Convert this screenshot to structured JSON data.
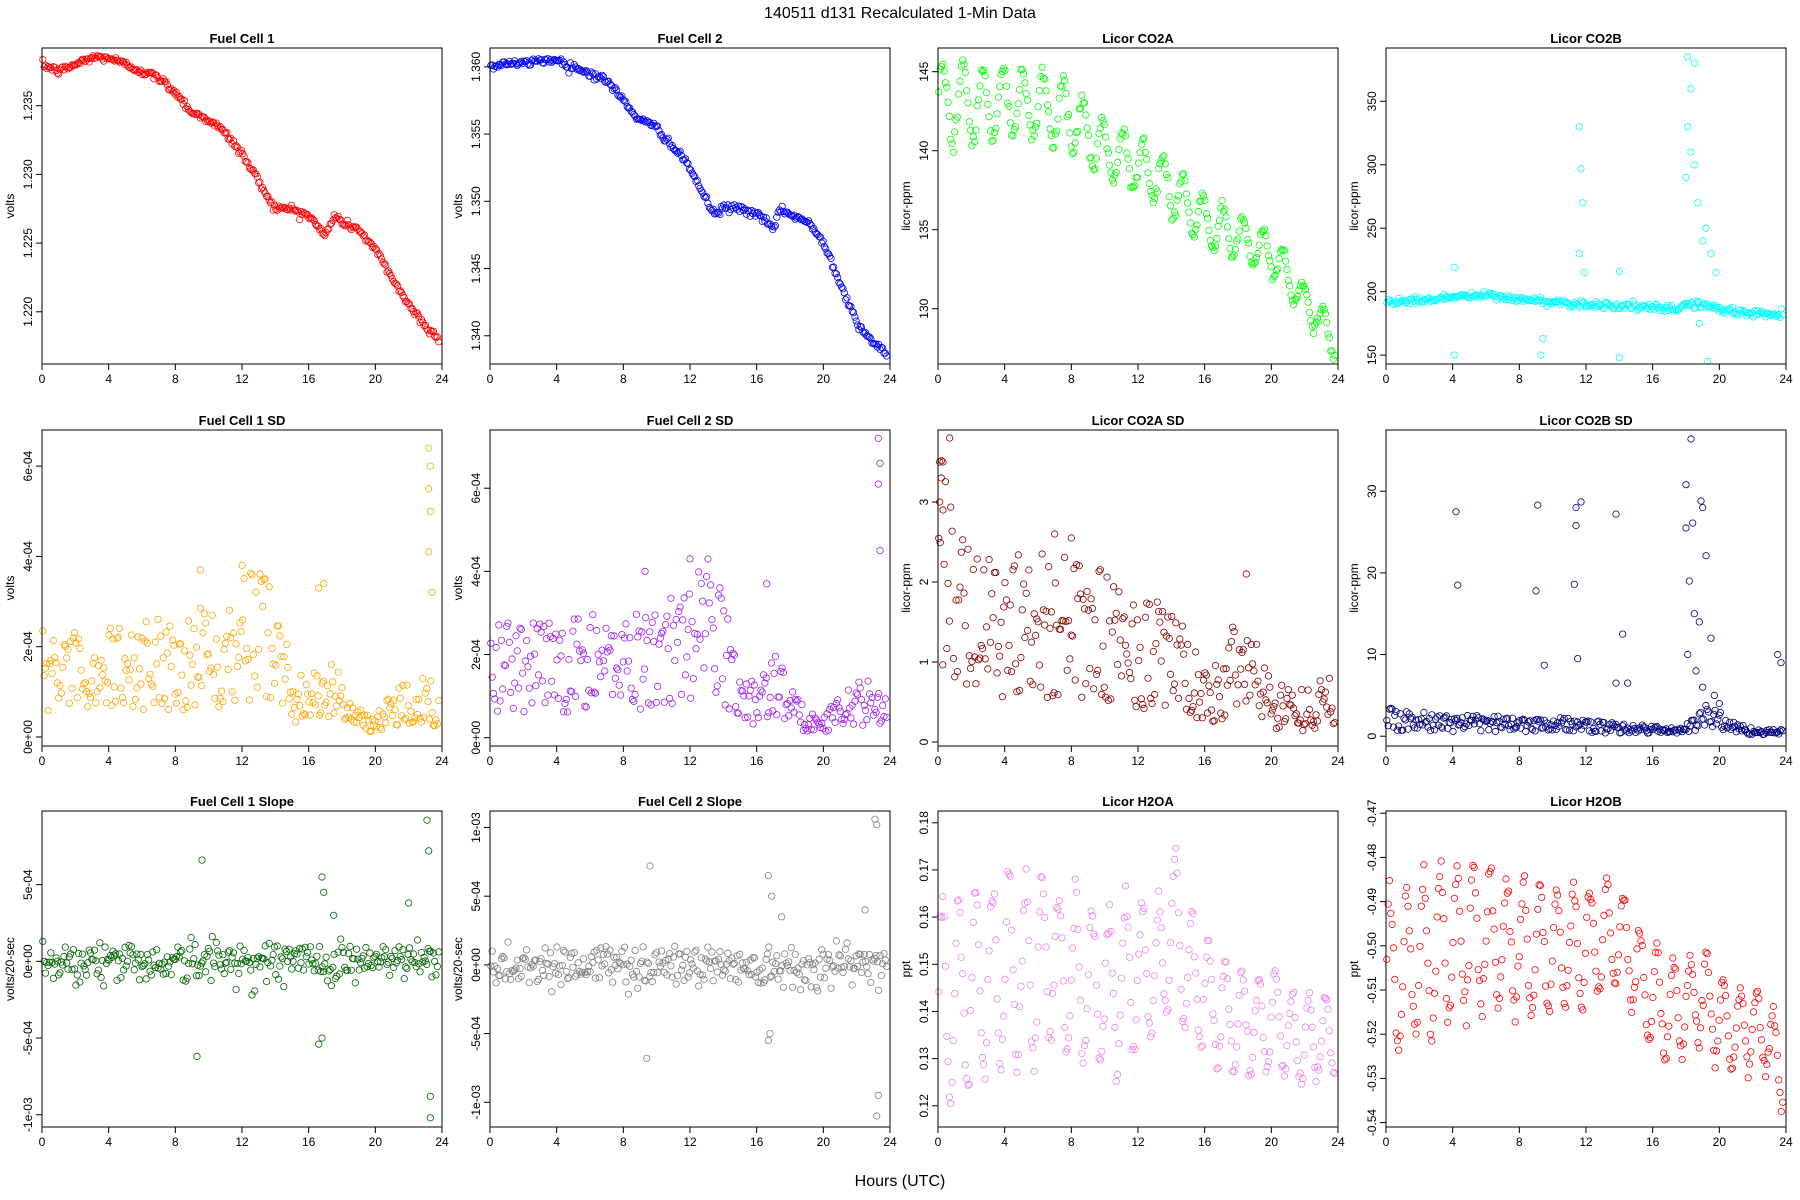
{
  "figure": {
    "title": "140511   d131   Recalculated 1-Min Data",
    "xlabel": "Hours (UTC)"
  },
  "chart_data": [
    {
      "id": "fc1",
      "type": "scatter",
      "title": "Fuel Cell 1",
      "ylabel": "volts",
      "color": "#ff0000",
      "xlim": [
        0,
        24
      ],
      "ylim": [
        1.2162,
        1.2392
      ],
      "yticks": [
        1.22,
        1.225,
        1.23,
        1.235
      ],
      "ytick_labels": [
        "1.220",
        "1.225",
        "1.230",
        "1.235"
      ],
      "x": [
        0,
        1,
        2,
        3,
        4,
        5,
        6,
        7,
        8,
        9,
        10,
        11,
        12,
        13,
        13.5,
        14,
        15,
        16,
        17,
        17.5,
        18,
        19,
        20,
        21,
        22,
        23,
        23.8
      ],
      "y": [
        1.238,
        1.2375,
        1.238,
        1.2385,
        1.2385,
        1.238,
        1.2375,
        1.237,
        1.236,
        1.2345,
        1.234,
        1.233,
        1.2315,
        1.2295,
        1.2285,
        1.2275,
        1.2275,
        1.227,
        1.2255,
        1.227,
        1.2265,
        1.226,
        1.2245,
        1.2225,
        1.2205,
        1.219,
        1.218
      ]
    },
    {
      "id": "fc2",
      "type": "scatter",
      "title": "Fuel Cell 2",
      "ylabel": "volts",
      "color": "#0000ff",
      "xlim": [
        0,
        24
      ],
      "ylim": [
        1.3379,
        1.3614
      ],
      "yticks": [
        1.34,
        1.345,
        1.35,
        1.355,
        1.36
      ],
      "ytick_labels": [
        "1.340",
        "1.345",
        "1.350",
        "1.355",
        "1.360"
      ],
      "x": [
        0,
        1,
        2,
        3,
        4,
        5,
        6,
        7,
        8,
        9,
        10,
        11,
        12,
        13,
        13.5,
        14,
        15,
        16,
        17,
        17.5,
        18,
        19,
        20,
        21,
        22,
        23,
        23.8
      ],
      "y": [
        1.36,
        1.3603,
        1.3602,
        1.3605,
        1.3605,
        1.36,
        1.3595,
        1.359,
        1.3575,
        1.356,
        1.3555,
        1.354,
        1.3525,
        1.35,
        1.349,
        1.3495,
        1.3495,
        1.349,
        1.348,
        1.3495,
        1.349,
        1.3485,
        1.347,
        1.344,
        1.341,
        1.3395,
        1.3385
      ]
    },
    {
      "id": "co2a",
      "type": "scatter",
      "title": "Licor CO2A",
      "ylabel": "licor-ppm",
      "color": "#00ff00",
      "xlim": [
        0,
        24
      ],
      "ylim": [
        126.5,
        146.5
      ],
      "yticks": [
        130,
        135,
        140,
        145
      ],
      "ytick_labels": [
        "130",
        "135",
        "140",
        "145"
      ],
      "x": [
        0,
        1,
        2,
        3,
        4,
        5,
        6,
        7,
        8,
        9,
        10,
        11,
        12,
        13,
        14,
        15,
        16,
        17,
        18,
        19,
        20,
        21,
        22,
        23,
        23.8
      ],
      "y": [
        143,
        143,
        143,
        143,
        143,
        143,
        143,
        142.5,
        142,
        141,
        140,
        139.5,
        139,
        138.5,
        137.5,
        136.5,
        135.5,
        135,
        134.5,
        134,
        133.5,
        132,
        130.5,
        129,
        128
      ],
      "oscillation": {
        "amplitude": 2.5,
        "period_hours": 1.2,
        "amplitude_end": 1.0
      }
    },
    {
      "id": "co2b",
      "type": "scatter",
      "title": "Licor CO2B",
      "ylabel": "licor-ppm",
      "color": "#00ffff",
      "xlim": [
        0,
        24
      ],
      "ylim": [
        143,
        392
      ],
      "yticks": [
        150,
        200,
        250,
        300,
        350
      ],
      "ytick_labels": [
        "150",
        "200",
        "250",
        "300",
        "350"
      ],
      "x": [
        0,
        2,
        4,
        6,
        8,
        10,
        12,
        14,
        16,
        17.3,
        18,
        19,
        20,
        21,
        22,
        23,
        23.8
      ],
      "y": [
        192,
        193,
        196,
        197,
        194,
        192,
        190,
        189,
        187,
        186,
        190,
        190,
        186,
        184,
        183,
        182,
        182
      ],
      "spikes": [
        [
          4.1,
          150
        ],
        [
          4.1,
          219
        ],
        [
          9.3,
          150
        ],
        [
          9.4,
          163
        ],
        [
          11.6,
          330
        ],
        [
          11.7,
          297
        ],
        [
          11.8,
          270
        ],
        [
          11.6,
          230
        ],
        [
          11.9,
          215
        ],
        [
          14.0,
          148
        ],
        [
          14.0,
          216
        ],
        [
          18.1,
          385
        ],
        [
          18.3,
          360
        ],
        [
          18.1,
          330
        ],
        [
          18.3,
          310
        ],
        [
          18.0,
          290
        ],
        [
          18.5,
          300
        ],
        [
          18.7,
          270
        ],
        [
          19.0,
          240
        ],
        [
          19.2,
          250
        ],
        [
          19.5,
          230
        ],
        [
          19.8,
          215
        ],
        [
          19.3,
          145
        ],
        [
          18.8,
          175
        ],
        [
          18.5,
          380
        ]
      ]
    },
    {
      "id": "fc1sd",
      "type": "scatter",
      "title": "Fuel Cell 1 SD",
      "ylabel": "volts",
      "color": "#ffa500",
      "xlim": [
        0,
        24
      ],
      "ylim": [
        -2e-05,
        0.00068
      ],
      "yticks": [
        0,
        0.0002,
        0.0004,
        0.0006
      ],
      "ytick_labels": [
        "0e+00",
        "2e-04",
        "4e-04",
        "6e-04"
      ],
      "x": [
        0,
        2,
        4,
        6,
        8,
        10,
        12,
        13,
        14,
        15,
        16,
        17,
        18,
        19,
        20,
        21,
        22,
        23,
        23.8
      ],
      "y": [
        0.00015,
        0.00014,
        0.00015,
        0.00016,
        0.00017,
        0.00018,
        0.00021,
        0.00025,
        0.0002,
        0.0001,
        7e-05,
        0.00012,
        8e-05,
        4e-05,
        3e-05,
        6e-05,
        8e-05,
        9e-05,
        6e-05
      ],
      "spikes": [
        [
          23.2,
          0.00064
        ],
        [
          23.3,
          0.0006
        ],
        [
          23.2,
          0.00055
        ],
        [
          23.3,
          0.0005
        ],
        [
          23.2,
          0.00041
        ],
        [
          23.4,
          0.00032
        ],
        [
          16.6,
          0.00033
        ],
        [
          16.9,
          0.00034
        ],
        [
          12,
          0.00038
        ],
        [
          9.5,
          0.00037
        ]
      ]
    },
    {
      "id": "fc2sd",
      "type": "scatter",
      "title": "Fuel Cell 2 SD",
      "ylabel": "volts",
      "color": "#a020f0",
      "xlim": [
        0,
        24
      ],
      "ylim": [
        -2e-05,
        0.00074
      ],
      "yticks": [
        0,
        0.0002,
        0.0004,
        0.0006
      ],
      "ytick_labels": [
        "0e+00",
        "2e-04",
        "4e-04",
        "6e-04"
      ],
      "x": [
        0,
        2,
        4,
        6,
        8,
        10,
        12,
        13,
        14,
        15,
        16,
        17,
        18,
        19,
        20,
        21,
        22,
        23,
        23.8
      ],
      "y": [
        0.00018,
        0.00017,
        0.00017,
        0.00018,
        0.00019,
        0.0002,
        0.00023,
        0.00028,
        0.00022,
        0.0001,
        8e-05,
        0.00014,
        8e-05,
        4e-05,
        3e-05,
        7e-05,
        8e-05,
        9e-05,
        6e-05
      ],
      "spikes": [
        [
          23.3,
          0.00072
        ],
        [
          23.4,
          0.00066
        ],
        [
          23.3,
          0.00061
        ],
        [
          23.4,
          0.00045
        ],
        [
          16.6,
          0.00037
        ],
        [
          12,
          0.00043
        ],
        [
          9.3,
          0.0004
        ]
      ]
    },
    {
      "id": "co2asd",
      "type": "scatter",
      "title": "Licor CO2A SD",
      "ylabel": "licor-ppm",
      "color": "#8b0000",
      "xlim": [
        0,
        24
      ],
      "ylim": [
        -0.05,
        3.9
      ],
      "yticks": [
        0,
        1,
        2,
        3
      ],
      "ytick_labels": [
        "0",
        "1",
        "2",
        "3"
      ],
      "x": [
        0,
        0.5,
        1,
        2,
        4,
        6,
        8,
        10,
        12,
        14,
        15,
        16,
        17,
        18,
        19,
        20,
        21,
        22,
        23,
        23.8
      ],
      "y": [
        2.4,
        2.0,
        1.7,
        1.6,
        1.5,
        1.5,
        1.4,
        1.3,
        1.15,
        1.05,
        0.8,
        0.55,
        0.6,
        1.1,
        0.8,
        0.5,
        0.45,
        0.4,
        0.5,
        0.5
      ],
      "spikes": [
        [
          0.7,
          3.8
        ],
        [
          0.1,
          3.5
        ],
        [
          0.3,
          3.5
        ],
        [
          0.2,
          3.3
        ],
        [
          0.1,
          3.0
        ],
        [
          0.3,
          2.9
        ],
        [
          7,
          2.6
        ],
        [
          8,
          2.55
        ],
        [
          18.5,
          2.1
        ]
      ]
    },
    {
      "id": "co2bsd",
      "type": "scatter",
      "title": "Licor CO2B SD",
      "ylabel": "licor-ppm",
      "color": "#000080",
      "xlim": [
        0,
        24
      ],
      "ylim": [
        -1.2,
        37.5
      ],
      "yticks": [
        0,
        10,
        20,
        30
      ],
      "ytick_labels": [
        "0",
        "10",
        "20",
        "30"
      ],
      "x": [
        0,
        2,
        4,
        6,
        8,
        10,
        11,
        12,
        14,
        16,
        17,
        18,
        19,
        20,
        21,
        22,
        23,
        23.8
      ],
      "y": [
        2.2,
        1.8,
        1.6,
        1.5,
        1.6,
        1.6,
        1.4,
        1.2,
        1.0,
        0.8,
        0.7,
        0.8,
        2.5,
        2,
        1,
        0.6,
        0.5,
        0.5
      ],
      "spikes": [
        [
          4.2,
          27.5
        ],
        [
          4.3,
          18.5
        ],
        [
          9.1,
          28.3
        ],
        [
          9.0,
          17.8
        ],
        [
          11.4,
          28.0
        ],
        [
          11.7,
          28.7
        ],
        [
          11.4,
          25.8
        ],
        [
          11.3,
          18.6
        ],
        [
          11.5,
          9.5
        ],
        [
          13.8,
          27.2
        ],
        [
          14.2,
          12.5
        ],
        [
          13.8,
          6.5
        ],
        [
          18.3,
          36.4
        ],
        [
          18.0,
          30.8
        ],
        [
          18.4,
          26.1
        ],
        [
          18.0,
          25.5
        ],
        [
          18.9,
          28.8
        ],
        [
          19.0,
          28.0
        ],
        [
          19.2,
          22.1
        ],
        [
          18.2,
          19
        ],
        [
          18.5,
          15
        ],
        [
          18.8,
          14
        ],
        [
          19.5,
          12
        ],
        [
          18.1,
          10
        ],
        [
          18.6,
          8
        ],
        [
          19.0,
          6
        ],
        [
          19.7,
          5
        ],
        [
          20.0,
          4
        ],
        [
          23.5,
          10
        ],
        [
          23.7,
          9
        ],
        [
          9.5,
          8.7
        ],
        [
          14.5,
          6.5
        ]
      ]
    },
    {
      "id": "fc1slope",
      "type": "scatter",
      "title": "Fuel Cell 1 Slope",
      "ylabel": "volts/20-sec",
      "color": "#006400",
      "xlim": [
        0,
        24
      ],
      "ylim": [
        -0.00108,
        0.00098
      ],
      "yticks": [
        -0.001,
        -0.0005,
        0,
        0.0005
      ],
      "ytick_labels": [
        "-1e-03",
        "-5e-04",
        "0e+00",
        "5e-04"
      ],
      "x": [
        0,
        24
      ],
      "y": [
        0,
        0
      ],
      "noise_sd": 7e-05,
      "spikes": [
        [
          23.1,
          0.00092
        ],
        [
          23.2,
          0.00072
        ],
        [
          23.3,
          -0.00088
        ],
        [
          23.3,
          -0.00102
        ],
        [
          9.6,
          0.00066
        ],
        [
          9.3,
          -0.00062
        ],
        [
          16.8,
          0.00055
        ],
        [
          16.9,
          0.00045
        ],
        [
          16.6,
          -0.00054
        ],
        [
          16.8,
          -0.0005
        ],
        [
          22,
          0.00038
        ],
        [
          17.5,
          0.0003
        ]
      ]
    },
    {
      "id": "fc2slope",
      "type": "scatter",
      "title": "Fuel Cell 2 Slope",
      "ylabel": "volts/20-sec",
      "color": "#808080",
      "xlim": [
        0,
        24
      ],
      "ylim": [
        -0.00118,
        0.00112
      ],
      "yticks": [
        -0.001,
        -0.0005,
        0,
        0.0005,
        0.001
      ],
      "ytick_labels": [
        "-1e-03",
        "-5e-04",
        "0e+00",
        "5e-04",
        "1e-03"
      ],
      "x": [
        0,
        24
      ],
      "y": [
        0,
        0
      ],
      "noise_sd": 8e-05,
      "spikes": [
        [
          23.1,
          0.00106
        ],
        [
          23.2,
          0.00102
        ],
        [
          23.3,
          -0.00095
        ],
        [
          23.2,
          -0.0011
        ],
        [
          9.6,
          0.00072
        ],
        [
          9.4,
          -0.00068
        ],
        [
          16.7,
          0.00065
        ],
        [
          16.9,
          0.0005
        ],
        [
          16.7,
          -0.00055
        ],
        [
          16.8,
          -0.0005
        ],
        [
          22.5,
          0.0004
        ],
        [
          17.5,
          0.00035
        ]
      ]
    },
    {
      "id": "h2oa",
      "type": "scatter",
      "title": "Licor H2OA",
      "ylabel": "ppt",
      "color": "#ee82ee",
      "xlim": [
        0,
        24
      ],
      "ylim": [
        0.1155,
        0.1825
      ],
      "yticks": [
        0.12,
        0.13,
        0.14,
        0.15,
        0.16,
        0.17,
        0.18
      ],
      "ytick_labels": [
        "0.12",
        "0.13",
        "0.14",
        "0.15",
        "0.16",
        "0.17",
        "0.18"
      ],
      "x": [
        0,
        2,
        4,
        6,
        8,
        10,
        12,
        13.5,
        14,
        15,
        16,
        17,
        18,
        19,
        20,
        21,
        22,
        23,
        23.8
      ],
      "y": [
        0.142,
        0.145,
        0.148,
        0.15,
        0.148,
        0.145,
        0.148,
        0.15,
        0.16,
        0.148,
        0.145,
        0.14,
        0.138,
        0.136,
        0.138,
        0.135,
        0.133,
        0.135,
        0.135
      ],
      "oscillation": {
        "amplitude": 0.022,
        "period_hours": 1.0,
        "amplitude_end": 0.008
      }
    },
    {
      "id": "h2ob",
      "type": "scatter",
      "title": "Licor H2OB",
      "ylabel": "ppt",
      "color": "#ff0000",
      "xlim": [
        0,
        24
      ],
      "ylim": [
        -0.541,
        -0.4695
      ],
      "yticks": [
        -0.54,
        -0.53,
        -0.52,
        -0.51,
        -0.5,
        -0.49,
        -0.48,
        -0.47
      ],
      "ytick_labels": [
        "-0.54",
        "-0.53",
        "-0.52",
        "-0.51",
        "-0.50",
        "-0.49",
        "-0.48",
        "-0.47"
      ],
      "x": [
        0,
        2,
        4,
        6,
        8,
        10,
        12,
        14,
        15,
        16,
        17,
        18,
        19,
        20,
        21,
        22,
        23,
        23.8
      ],
      "y": [
        -0.508,
        -0.503,
        -0.5,
        -0.498,
        -0.5,
        -0.502,
        -0.5,
        -0.497,
        -0.505,
        -0.512,
        -0.515,
        -0.513,
        -0.512,
        -0.516,
        -0.52,
        -0.518,
        -0.522,
        -0.528
      ],
      "oscillation": {
        "amplitude": 0.018,
        "period_hours": 1.0,
        "amplitude_end": 0.008
      }
    }
  ]
}
